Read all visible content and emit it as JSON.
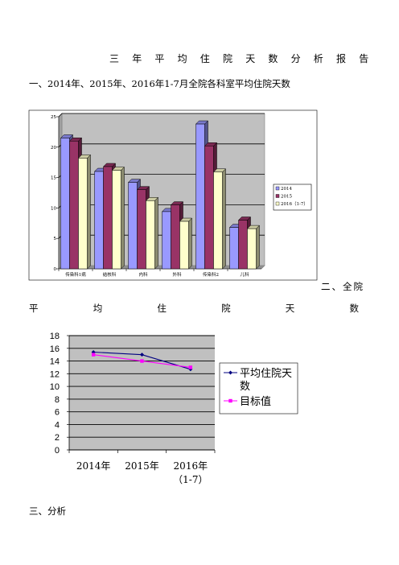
{
  "doc": {
    "title": "三年平均住院天数分析报告",
    "section1": "一、2014年、2015年、2016年1-7月全院各科室平均住院天数",
    "section2_head": "二、全院",
    "section2_rest": [
      "平",
      "均",
      "住",
      "院",
      "天",
      "数"
    ],
    "section3": "三、分析"
  },
  "chart_data": [
    {
      "type": "bar",
      "categories": [
        "传染科1病",
        "结核科",
        "内科",
        "外科",
        "传染科2",
        "儿科"
      ],
      "series": [
        {
          "name": "2014",
          "values": [
            21.5,
            16.0,
            14.2,
            9.4,
            23.8,
            6.8
          ],
          "color": "#9999ff"
        },
        {
          "name": "2015",
          "values": [
            21.0,
            16.8,
            13.0,
            10.5,
            20.2,
            8.0
          ],
          "color": "#993366"
        },
        {
          "name": "2016（1-7）",
          "values": [
            18.2,
            16.2,
            11.2,
            7.8,
            15.9,
            6.6
          ],
          "color": "#ffffcc"
        }
      ],
      "ylim": [
        0,
        25
      ],
      "yticks": [
        0,
        5,
        10,
        15,
        20,
        25
      ],
      "grid": true,
      "legend": "right",
      "plot_bg": "#c0c0c0"
    },
    {
      "type": "line",
      "categories": [
        "2014年",
        "2015年",
        "2016年"
      ],
      "category_sub": [
        "",
        "",
        "（1-7）"
      ],
      "series": [
        {
          "name": "平均住院天数",
          "values": [
            15.4,
            15.0,
            12.7
          ],
          "color": "#000080"
        },
        {
          "name": "目标值",
          "values": [
            15.0,
            14.0,
            13.0
          ],
          "color": "#ff00ff"
        }
      ],
      "ylim": [
        0,
        18
      ],
      "yticks": [
        0,
        2,
        4,
        6,
        8,
        10,
        12,
        14,
        16,
        18
      ],
      "grid": true,
      "legend": "right",
      "plot_bg": "#c0c0c0"
    }
  ]
}
